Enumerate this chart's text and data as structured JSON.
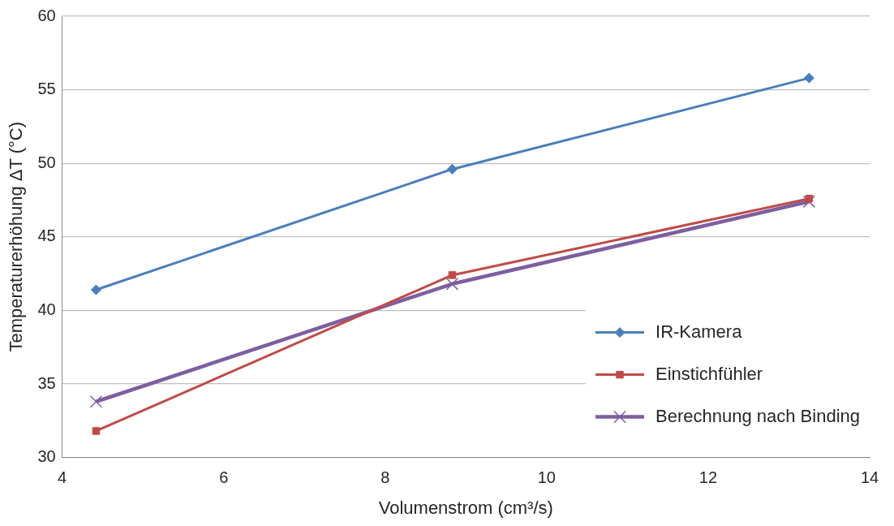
{
  "chart_data": {
    "type": "line",
    "xlabel": "Volumenstrom (cm³/s)",
    "ylabel": "Temperaturerhöhung ΔT (°C)",
    "xlim": [
      4,
      14
    ],
    "xticks": [
      4,
      6,
      8,
      10,
      12,
      14
    ],
    "ylim": [
      30,
      60
    ],
    "yticks": [
      30,
      35,
      40,
      45,
      50,
      55,
      60
    ],
    "grid": "y",
    "legend": "bottom right",
    "series": [
      {
        "name": "IR-Kamera",
        "color": "#4a7ebb",
        "marker": "diamond",
        "x": [
          4.42,
          8.83,
          13.25
        ],
        "values": [
          41.4,
          49.6,
          55.8
        ]
      },
      {
        "name": "Einstichfühler",
        "color": "#be4b48",
        "marker": "square",
        "x": [
          4.42,
          8.83,
          13.25
        ],
        "values": [
          31.8,
          42.4,
          47.6
        ]
      },
      {
        "name": "Berechnung nach Binding",
        "color": "#7d5fa0",
        "marker": "cross",
        "x": [
          4.42,
          8.83,
          13.25
        ],
        "values": [
          33.8,
          41.8,
          47.4
        ]
      }
    ]
  }
}
